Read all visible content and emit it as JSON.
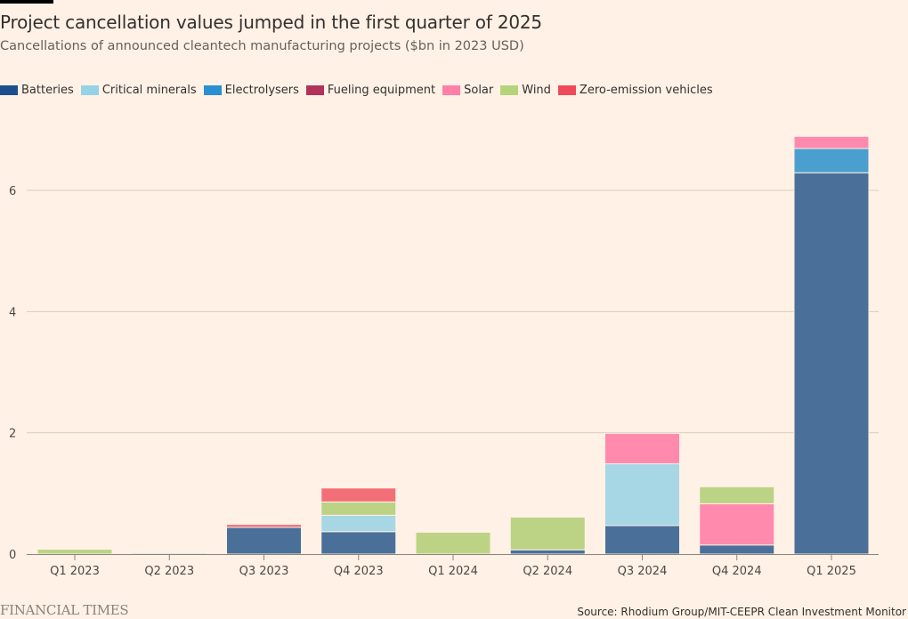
{
  "header": {
    "title": "Project cancellation values jumped in the first quarter of 2025",
    "subtitle": "Cancellations of announced cleantech manufacturing projects ($bn in 2023 USD)"
  },
  "footer": {
    "logo": "FINANCIAL TIMES",
    "source": "Source: Rhodium Group/MIT-CEEPR Clean Investment Monitor"
  },
  "chart_data": {
    "type": "bar",
    "stacked": true,
    "title": "Project cancellation values jumped in the first quarter of 2025",
    "subtitle": "Cancellations of announced cleantech manufacturing projects ($bn in 2023 USD)",
    "xlabel": "",
    "ylabel": "",
    "ylim": [
      0,
      7
    ],
    "yticks": [
      0,
      2,
      4,
      6
    ],
    "grid": true,
    "legend_position": "top-left",
    "categories": [
      "Q1 2023",
      "Q2 2023",
      "Q3 2023",
      "Q4 2023",
      "Q1 2024",
      "Q2 2024",
      "Q3 2024",
      "Q4 2024",
      "Q1 2025"
    ],
    "series": [
      {
        "name": "Batteries",
        "color": "#4a7099",
        "legend_color": "#1f4e8c",
        "values": [
          0,
          0,
          0.44,
          0.37,
          0,
          0.07,
          0.47,
          0.15,
          6.29
        ]
      },
      {
        "name": "Critical minerals",
        "color": "#a7d6e5",
        "legend_color": "#96d2e6",
        "values": [
          0,
          0.02,
          0,
          0.27,
          0,
          0,
          1.02,
          0,
          0
        ]
      },
      {
        "name": "Electrolysers",
        "color": "#4a9fcf",
        "legend_color": "#2a8fd0",
        "values": [
          0,
          0,
          0,
          0,
          0,
          0,
          0,
          0,
          0.4
        ]
      },
      {
        "name": "Fueling equipment",
        "color": "#b8365e",
        "legend_color": "#b3325c",
        "values": [
          0,
          0,
          0,
          0,
          0,
          0,
          0,
          0,
          0
        ]
      },
      {
        "name": "Solar",
        "color": "#ff8aad",
        "legend_color": "#ff7fa8",
        "values": [
          0,
          0,
          0,
          0,
          0,
          0,
          0.5,
          0.68,
          0.2
        ]
      },
      {
        "name": "Wind",
        "color": "#bcd386",
        "legend_color": "#b5d47a",
        "values": [
          0.08,
          0,
          0,
          0.22,
          0.36,
          0.54,
          0,
          0.28,
          0
        ]
      },
      {
        "name": "Zero-emission vehicles",
        "color": "#f36f77",
        "legend_color": "#f04a5a",
        "values": [
          0,
          0,
          0.05,
          0.23,
          0,
          0,
          0,
          0,
          0
        ]
      }
    ]
  }
}
